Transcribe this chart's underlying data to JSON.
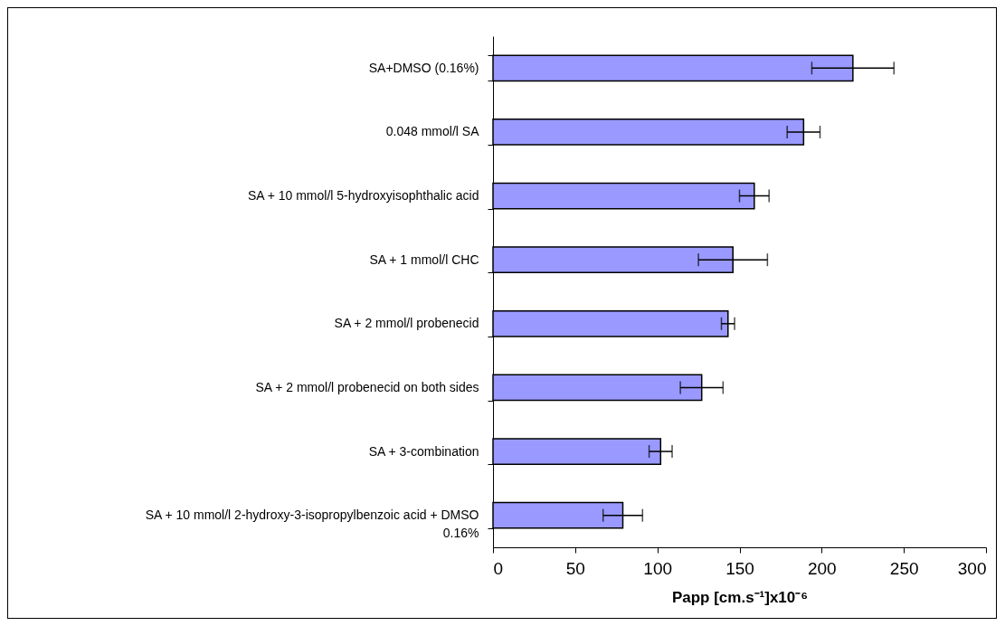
{
  "chart_data": {
    "type": "bar",
    "orientation": "horizontal",
    "categories": [
      "SA+DMSO (0.16%)",
      "0.048 mmol/l SA",
      "SA + 10 mmol/l 5-hydroxyisophthalic acid",
      "SA + 1 mmol/l CHC",
      "SA + 2 mmol/l probenecid",
      "SA + 2 mmol/l probenecid on both sides",
      "SA + 3-combination",
      "SA + 10 mmol/l 2-hydroxy-3-isopropylbenzoic acid + DMSO 0.16%"
    ],
    "values": [
      219,
      189,
      159,
      146,
      143,
      127,
      102,
      79
    ],
    "errors": [
      25,
      10,
      9,
      21,
      4,
      13,
      7,
      12
    ],
    "color": "#9999ff",
    "xlabel": "Papp [cm.s⁻¹]x10⁻⁶",
    "xlim": [
      0,
      300
    ],
    "xticks": [
      0,
      50,
      100,
      150,
      200,
      250,
      300
    ],
    "grid": false
  }
}
